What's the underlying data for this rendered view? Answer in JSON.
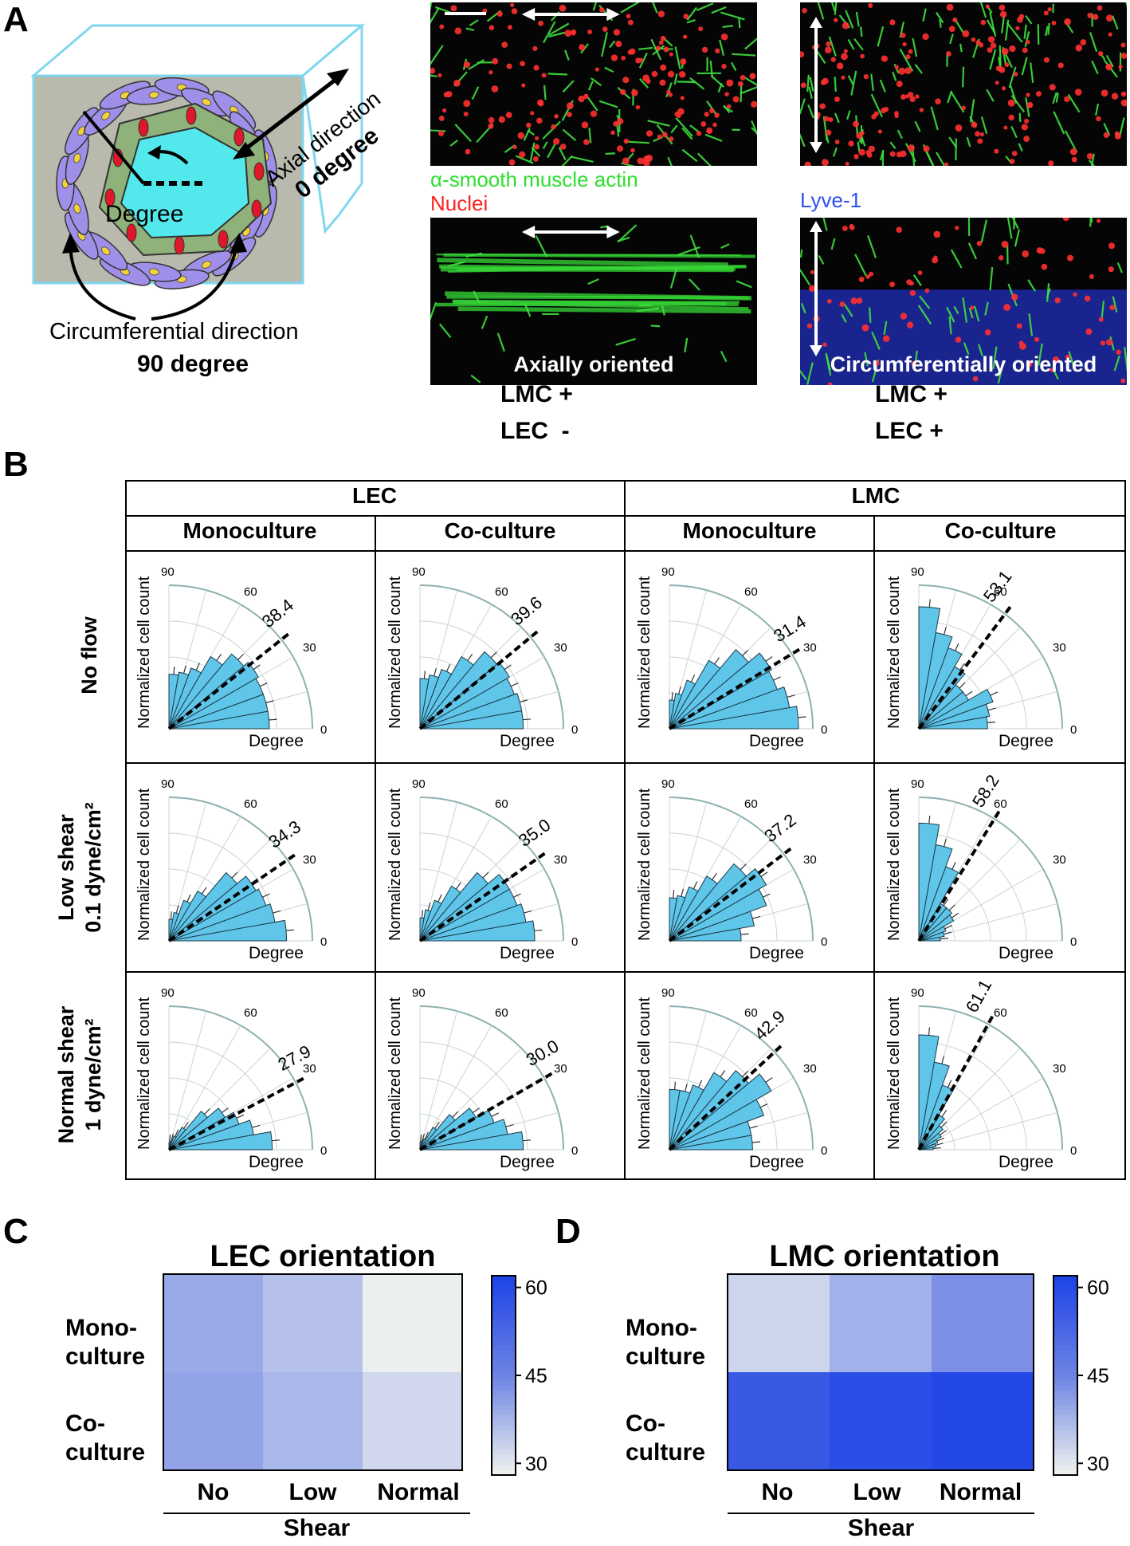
{
  "panels": {
    "A": "A",
    "B": "B",
    "C": "C",
    "D": "D"
  },
  "panel_a": {
    "degree_label": "Degree",
    "axial_line1": "Axial direction",
    "axial_line2": "0 degree",
    "circ_line1": "Circumferential direction",
    "circ_line2": "90 degree",
    "legend_green": "α-smooth muscle actin",
    "legend_red": "Nuclei",
    "legend_blue": "Lyve-1",
    "label_axial": "Axially oriented",
    "label_circ": "Circumferentially oriented",
    "cond_left": [
      "LMC +",
      "LEC  -"
    ],
    "cond_right": [
      "LMC +",
      "LEC +"
    ],
    "colors": {
      "green": "#2de02d",
      "red": "#ff2020",
      "blue": "#2f4ff0",
      "cube": "#7fd7ee"
    }
  },
  "panel_b": {
    "group_headers": [
      "LEC",
      "LMC"
    ],
    "col_headers": [
      "Monoculture",
      "Co-culture",
      "Monoculture",
      "Co-culture"
    ],
    "row_headers": [
      {
        "line1": "No flow",
        "line2": ""
      },
      {
        "line1": "Low shear",
        "line2": "0.1 dyne/cm²"
      },
      {
        "line1": "Normal shear",
        "line2": "1 dyne/cm²"
      }
    ],
    "ylabel": "Normalized cell count",
    "xlabel": "Degree",
    "angle_ticks": [
      "0",
      "30",
      "60",
      "90"
    ],
    "bar_color": "#5fc6ea"
  },
  "chart_data": [
    {
      "type": "polar-histogram",
      "panel": "B",
      "bin_edges_deg": [
        0,
        10,
        20,
        30,
        40,
        50,
        60,
        70,
        80,
        90
      ],
      "angle_range": [
        0,
        90
      ],
      "grid": true,
      "cells": [
        {
          "row": "No flow",
          "group": "LEC",
          "culture": "Monoculture",
          "mean_angle": "38.4",
          "values": [
            0.7,
            0.7,
            0.7,
            0.72,
            0.68,
            0.58,
            0.45,
            0.4,
            0.38
          ]
        },
        {
          "row": "No flow",
          "group": "LEC",
          "culture": "Co-culture",
          "mean_angle": "39.6",
          "values": [
            0.72,
            0.72,
            0.7,
            0.72,
            0.7,
            0.58,
            0.44,
            0.38,
            0.35
          ]
        },
        {
          "row": "No flow",
          "group": "LMC",
          "culture": "Monoculture",
          "mean_angle": "31.4",
          "values": [
            0.9,
            0.85,
            0.8,
            0.82,
            0.72,
            0.55,
            0.36,
            0.25,
            0.2
          ]
        },
        {
          "row": "No flow",
          "group": "LMC",
          "culture": "Co-culture",
          "mean_angle": "53.1",
          "values": [
            0.48,
            0.5,
            0.55,
            0.4,
            0.4,
            0.5,
            0.6,
            0.68,
            0.85
          ]
        },
        {
          "row": "Low shear",
          "group": "LEC",
          "culture": "Monoculture",
          "mean_angle": "34.3",
          "values": [
            0.82,
            0.75,
            0.72,
            0.7,
            0.62,
            0.4,
            0.3,
            0.2,
            0.15
          ]
        },
        {
          "row": "Low shear",
          "group": "LEC",
          "culture": "Co-culture",
          "mean_angle": "35.0",
          "values": [
            0.8,
            0.75,
            0.72,
            0.72,
            0.62,
            0.44,
            0.3,
            0.22,
            0.16
          ]
        },
        {
          "row": "Low shear",
          "group": "LMC",
          "culture": "Monoculture",
          "mean_angle": "37.2",
          "values": [
            0.5,
            0.6,
            0.72,
            0.78,
            0.7,
            0.52,
            0.4,
            0.32,
            0.3
          ]
        },
        {
          "row": "Low shear",
          "group": "LMC",
          "culture": "Co-culture",
          "mean_angle": "58.2",
          "values": [
            0.15,
            0.18,
            0.2,
            0.28,
            0.3,
            0.3,
            0.55,
            0.68,
            0.82
          ]
        },
        {
          "row": "Normal shear",
          "group": "LEC",
          "culture": "Monoculture",
          "mean_angle": "27.9",
          "values": [
            0.72,
            0.6,
            0.52,
            0.45,
            0.35,
            0.18,
            0.1,
            0.06,
            0.05
          ]
        },
        {
          "row": "Normal shear",
          "group": "LEC",
          "culture": "Co-culture",
          "mean_angle": "30.0",
          "values": [
            0.72,
            0.62,
            0.55,
            0.45,
            0.32,
            0.18,
            0.08,
            0.06,
            0.05
          ]
        },
        {
          "row": "Normal shear",
          "group": "LMC",
          "culture": "Monoculture",
          "mean_angle": "42.9",
          "values": [
            0.58,
            0.58,
            0.7,
            0.82,
            0.72,
            0.62,
            0.48,
            0.42,
            0.42
          ]
        },
        {
          "row": "Normal shear",
          "group": "LMC",
          "culture": "Co-culture",
          "mean_angle": "61.1",
          "values": [
            0.1,
            0.12,
            0.14,
            0.18,
            0.22,
            0.28,
            0.48,
            0.62,
            0.8
          ]
        }
      ]
    },
    {
      "type": "heatmap",
      "panel": "C",
      "title": "LEC orientation",
      "rows": [
        "Mono-\nculture",
        "Co-\nculture"
      ],
      "columns": [
        "No",
        "Low",
        "Normal"
      ],
      "xlabel": "Shear",
      "values": [
        [
          39.5,
          36.0,
          29.0
        ],
        [
          40.5,
          37.5,
          32.5
        ]
      ],
      "colorbar": {
        "min": 28,
        "max": 62,
        "ticks": [
          "30",
          "45",
          "60"
        ],
        "low_color": "#f4f6f0",
        "mid_color": "#6f86e4",
        "high_color": "#1f44e6"
      }
    },
    {
      "type": "heatmap",
      "panel": "D",
      "title": "LMC orientation",
      "rows": [
        "Mono-\nculture",
        "Co-\nculture"
      ],
      "columns": [
        "No",
        "Low",
        "Normal"
      ],
      "xlabel": "Shear",
      "values": [
        [
          33.0,
          38.5,
          43.5
        ],
        [
          56.5,
          59.5,
          61.0
        ]
      ],
      "colorbar": {
        "min": 28,
        "max": 62,
        "ticks": [
          "30",
          "45",
          "60"
        ],
        "low_color": "#f4f6f0",
        "mid_color": "#6f86e4",
        "high_color": "#1f44e6"
      }
    }
  ]
}
